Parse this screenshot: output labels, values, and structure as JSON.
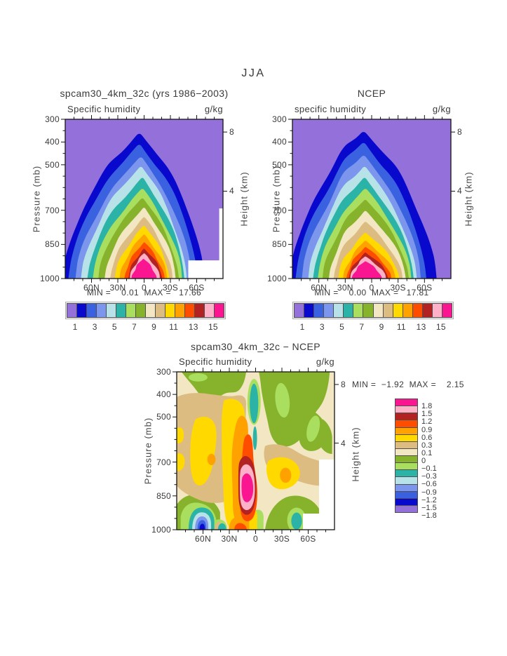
{
  "page": {
    "title": "JJA"
  },
  "palette": [
    "#9470DB",
    "#0909CE",
    "#3A62E0",
    "#7B96EC",
    "#B7E3E8",
    "#2AB3A6",
    "#A9DE5F",
    "#86B32B",
    "#F2E7C2",
    "#DDBC82",
    "#FFD900",
    "#FFA200",
    "#FF4D00",
    "#B22222",
    "#FFB1C8",
    "#FA1690"
  ],
  "colorbar_labels": [
    "1",
    "3",
    "5",
    "7",
    "9",
    "11",
    "13",
    "15"
  ],
  "key_labels": [
    "1.8",
    "1.5",
    "1.2",
    "0.9",
    "0.6",
    "0.3",
    "0.1",
    "0",
    "−0.1",
    "−0.3",
    "−0.6",
    "−0.9",
    "−1.2",
    "−1.5",
    "−1.8"
  ],
  "axes": {
    "lat_labels": [
      "60N",
      "30N",
      "0",
      "30S",
      "60S"
    ],
    "pressure_labels": [
      "300",
      "400",
      "500",
      "700",
      "850",
      "1000"
    ],
    "height_labels": [
      "8",
      "4"
    ],
    "pressure_title": "Pressure (mb)",
    "height_title": "Height (km)"
  },
  "panels": {
    "left": {
      "title": "spcam30_4km_32c (yrs 1986−2003)",
      "field_label": "Specific humidity",
      "units": "g/kg",
      "minmax": "MIN =    0.01  MAX =   17.66"
    },
    "right": {
      "title": "NCEP",
      "field_label": "specific humidity",
      "units": "g/kg",
      "minmax": "MIN =    0.00  MAX =   17.81"
    },
    "diff": {
      "title": "spcam30_4km_32c − NCEP",
      "field_label": "Specific humidity",
      "units": "g/kg",
      "minmax": "MIN =  −1.92  MAX =    2.15"
    }
  },
  "chart_data": [
    {
      "type": "filled_contour",
      "panel": "model",
      "title": "spcam30_4km_32c (yrs 1986−2003)",
      "season": "JJA",
      "variable": "Specific humidity",
      "units": "g/kg",
      "x_axis": {
        "label": "latitude",
        "tick_labels": [
          "60N",
          "30N",
          "0",
          "30S",
          "60S"
        ],
        "range": [
          "90N",
          "90S"
        ]
      },
      "y_axis": {
        "label": "Pressure (mb)",
        "ticks": [
          300,
          400,
          500,
          700,
          850,
          1000
        ],
        "range": [
          300,
          1000
        ]
      },
      "y2_axis": {
        "label": "Height (km)",
        "ticks": [
          8,
          4
        ]
      },
      "contour_levels": [
        1,
        2,
        3,
        4,
        5,
        6,
        7,
        8,
        9,
        10,
        11,
        12,
        13,
        14,
        15
      ],
      "min": 0.01,
      "max": 17.66,
      "structure": "Concentric moist tongue centered just north of the equator; >15 g/kg core at the near-surface tropics, values fall below 1 g/kg above ~400 mb and toward both poles; white surface-mask block near the South Pole at low levels."
    },
    {
      "type": "filled_contour",
      "panel": "reanalysis",
      "title": "NCEP",
      "season": "JJA",
      "variable": "specific humidity",
      "units": "g/kg",
      "x_axis": {
        "label": "latitude",
        "tick_labels": [
          "60N",
          "30N",
          "0",
          "30S",
          "60S"
        ],
        "range": [
          "90N",
          "90S"
        ]
      },
      "y_axis": {
        "label": "Pressure (mb)",
        "ticks": [
          300,
          400,
          500,
          700,
          850,
          1000
        ],
        "range": [
          300,
          1000
        ]
      },
      "y2_axis": {
        "label": "Height (km)",
        "ticks": [
          8,
          4
        ]
      },
      "contour_levels": [
        1,
        2,
        3,
        4,
        5,
        6,
        7,
        8,
        9,
        10,
        11,
        12,
        13,
        14,
        15
      ],
      "min": 0.0,
      "max": 17.81,
      "structure": "Same pattern as model with a wavier boundary and a secondary bump near 30N; >15 g/kg near-surface equatorial core."
    },
    {
      "type": "filled_contour",
      "panel": "difference",
      "title": "spcam30_4km_32c − NCEP",
      "season": "JJA",
      "variable": "Specific humidity",
      "units": "g/kg",
      "x_axis": {
        "label": "latitude",
        "tick_labels": [
          "60N",
          "30N",
          "0",
          "30S",
          "60S"
        ],
        "range": [
          "90N",
          "90S"
        ]
      },
      "y_axis": {
        "label": "Pressure (mb)",
        "ticks": [
          300,
          400,
          500,
          700,
          850,
          1000
        ],
        "range": [
          300,
          1000
        ]
      },
      "y2_axis": {
        "label": "Height (km)",
        "ticks": [
          8,
          4
        ]
      },
      "contour_levels": [
        -1.8,
        -1.5,
        -1.2,
        -0.9,
        -0.6,
        -0.3,
        -0.1,
        0,
        0.1,
        0.3,
        0.6,
        0.9,
        1.2,
        1.5,
        1.8
      ],
      "min": -1.92,
      "max": 2.15,
      "structure": "Moist bias (>1.8 g/kg, magenta) near 850 mb just north of the equator; dry bias (<−1.5 g/kg, blue) near the surface around 60N; weak negative (green) anomalies aloft and over the southern mid-latitudes; mostly +0−0.6 g/kg (cream/tan/yellow) elsewhere."
    }
  ]
}
